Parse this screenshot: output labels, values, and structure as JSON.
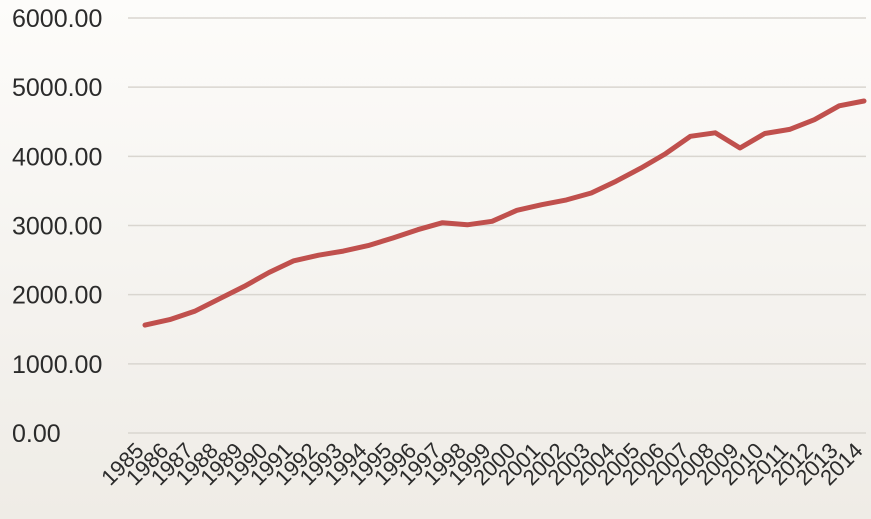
{
  "chart_data": {
    "type": "line",
    "title": "",
    "xlabel": "",
    "ylabel": "",
    "ylim": [
      0,
      6000
    ],
    "y_ticks": [
      "0.00",
      "1000.00",
      "2000.00",
      "3000.00",
      "4000.00",
      "5000.00",
      "6000.00"
    ],
    "y_tick_values": [
      0,
      1000,
      2000,
      3000,
      4000,
      5000,
      6000
    ],
    "grid": true,
    "legend": "none",
    "x": [
      "1985",
      "1986",
      "1987",
      "1988",
      "1989",
      "1990",
      "1991",
      "1992",
      "1993",
      "1994",
      "1995",
      "1996",
      "1997",
      "1998",
      "1999",
      "2000",
      "2001",
      "2002",
      "2003",
      "2004",
      "2005",
      "2006",
      "2007",
      "2008",
      "2009",
      "2010",
      "2011",
      "2012",
      "2013",
      "2014"
    ],
    "series": [
      {
        "color": "#c0504d",
        "values": [
          1560,
          1640,
          1760,
          1940,
          2120,
          2320,
          2490,
          2570,
          2630,
          2710,
          2820,
          2940,
          3040,
          3010,
          3060,
          3220,
          3300,
          3370,
          3470,
          3640,
          3830,
          4040,
          4290,
          4340,
          4120,
          4330,
          4390,
          4530,
          4730,
          4800
        ]
      }
    ]
  }
}
